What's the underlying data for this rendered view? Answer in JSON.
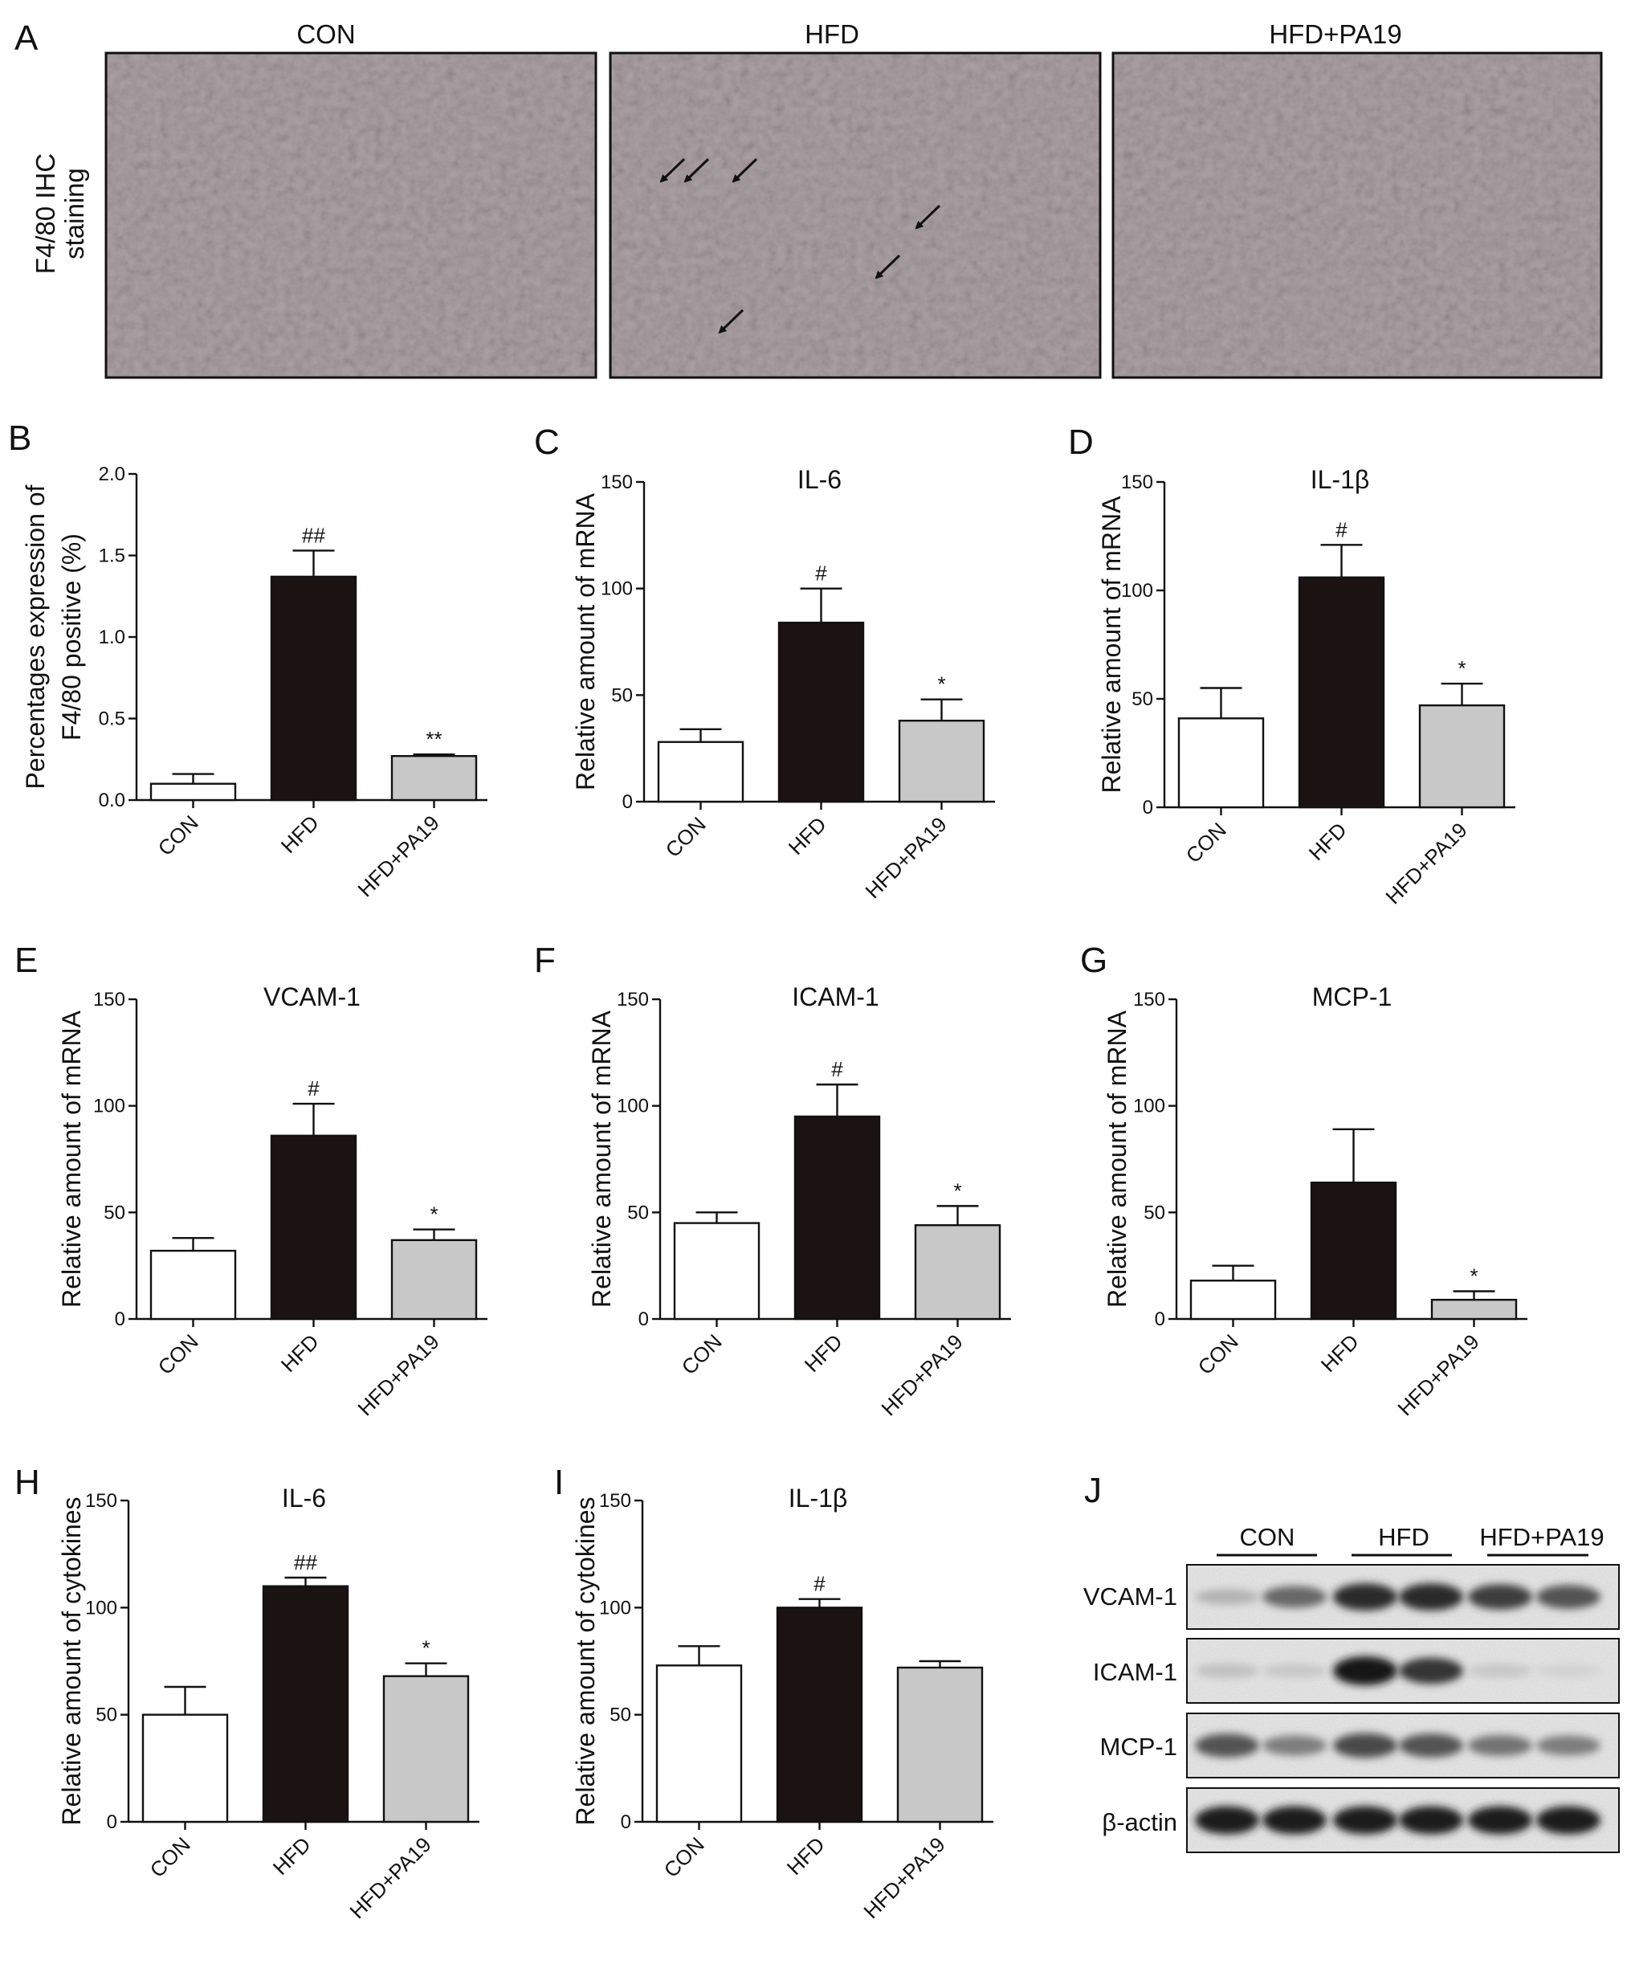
{
  "colors": {
    "CON": "#ffffff",
    "HFD": "#1a1311",
    "HFD+PA19": "#c8c8c8",
    "axis": "#111111",
    "tissue_bg": "#aca1a5"
  },
  "panel_a": {
    "letter": "A",
    "row_label_line1": "F4/80 IHC",
    "row_label_line2": "staining",
    "image_titles": [
      "CON",
      "HFD",
      "HFD+PA19"
    ],
    "arrows_in_hfd": 6
  },
  "chart_data": [
    {
      "panel": "B",
      "type": "bar",
      "title": "",
      "categories": [
        "CON",
        "HFD",
        "HFD+PA19"
      ],
      "values": [
        0.1,
        1.37,
        0.27
      ],
      "errors": [
        0.06,
        0.16,
        0.01
      ],
      "annotations": [
        "",
        "##",
        "**"
      ],
      "ylabel_lines": [
        "Percentages expression of",
        "F4/80 positive (%)"
      ],
      "yticks": [
        "0.0",
        "0.5",
        "1.0",
        "1.5",
        "2.0"
      ],
      "ylim": [
        0,
        2.0
      ]
    },
    {
      "panel": "C",
      "type": "bar",
      "title": "IL-6",
      "categories": [
        "CON",
        "HFD",
        "HFD+PA19"
      ],
      "values": [
        28,
        84,
        38
      ],
      "errors": [
        6,
        16,
        10
      ],
      "annotations": [
        "",
        "#",
        "*"
      ],
      "ylabel_lines": [
        "Relative amount of mRNA"
      ],
      "yticks": [
        "0",
        "50",
        "100",
        "150"
      ],
      "ylim": [
        0,
        150
      ]
    },
    {
      "panel": "D",
      "type": "bar",
      "title": "IL-1β",
      "categories": [
        "CON",
        "HFD",
        "HFD+PA19"
      ],
      "values": [
        41,
        106,
        47
      ],
      "errors": [
        14,
        15,
        10
      ],
      "annotations": [
        "",
        "#",
        "*"
      ],
      "ylabel_lines": [
        "Relative amount of mRNA"
      ],
      "yticks": [
        "0",
        "50",
        "100",
        "150"
      ],
      "ylim": [
        0,
        150
      ]
    },
    {
      "panel": "E",
      "type": "bar",
      "title": "VCAM-1",
      "categories": [
        "CON",
        "HFD",
        "HFD+PA19"
      ],
      "values": [
        32,
        86,
        37
      ],
      "errors": [
        6,
        15,
        5
      ],
      "annotations": [
        "",
        "#",
        "*"
      ],
      "ylabel_lines": [
        "Relative amount of mRNA"
      ],
      "yticks": [
        "0",
        "50",
        "100",
        "150"
      ],
      "ylim": [
        0,
        150
      ]
    },
    {
      "panel": "F",
      "type": "bar",
      "title": "ICAM-1",
      "categories": [
        "CON",
        "HFD",
        "HFD+PA19"
      ],
      "values": [
        45,
        95,
        44
      ],
      "errors": [
        5,
        15,
        9
      ],
      "annotations": [
        "",
        "#",
        "*"
      ],
      "ylabel_lines": [
        "Relative amount of mRNA"
      ],
      "yticks": [
        "0",
        "50",
        "100",
        "150"
      ],
      "ylim": [
        0,
        150
      ]
    },
    {
      "panel": "G",
      "type": "bar",
      "title": "MCP-1",
      "categories": [
        "CON",
        "HFD",
        "HFD+PA19"
      ],
      "values": [
        18,
        64,
        9
      ],
      "errors": [
        7,
        25,
        4
      ],
      "annotations": [
        "",
        "",
        "*"
      ],
      "ylabel_lines": [
        "Relative amount of mRNA"
      ],
      "yticks": [
        "0",
        "50",
        "100",
        "150"
      ],
      "ylim": [
        0,
        150
      ]
    },
    {
      "panel": "H",
      "type": "bar",
      "title": "IL-6",
      "categories": [
        "CON",
        "HFD",
        "HFD+PA19"
      ],
      "values": [
        50,
        110,
        68
      ],
      "errors": [
        13,
        4,
        6
      ],
      "annotations": [
        "",
        "##",
        "*"
      ],
      "ylabel_lines": [
        "Relative amount of cytokines"
      ],
      "yticks": [
        "0",
        "50",
        "100",
        "150"
      ],
      "ylim": [
        0,
        150
      ]
    },
    {
      "panel": "I",
      "type": "bar",
      "title": "IL-1β",
      "categories": [
        "CON",
        "HFD",
        "HFD+PA19"
      ],
      "values": [
        73,
        100,
        72
      ],
      "errors": [
        9,
        4,
        3
      ],
      "annotations": [
        "",
        "#",
        ""
      ],
      "ylabel_lines": [
        "Relative amount of cytokines"
      ],
      "yticks": [
        "0",
        "50",
        "100",
        "150"
      ],
      "ylim": [
        0,
        150
      ]
    }
  ],
  "panel_j": {
    "letter": "J",
    "groups": [
      "CON",
      "HFD",
      "HFD+PA19"
    ],
    "rows": [
      {
        "label": "VCAM-1",
        "intensities": [
          0.25,
          0.6,
          0.9,
          0.9,
          0.8,
          0.7
        ]
      },
      {
        "label": "ICAM-1",
        "intensities": [
          0.18,
          0.15,
          1.0,
          0.85,
          0.15,
          0.1
        ]
      },
      {
        "label": "MCP-1",
        "intensities": [
          0.7,
          0.5,
          0.75,
          0.7,
          0.55,
          0.5
        ]
      },
      {
        "label": "β-actin",
        "intensities": [
          0.95,
          0.95,
          0.95,
          0.95,
          0.95,
          0.95
        ]
      }
    ]
  }
}
